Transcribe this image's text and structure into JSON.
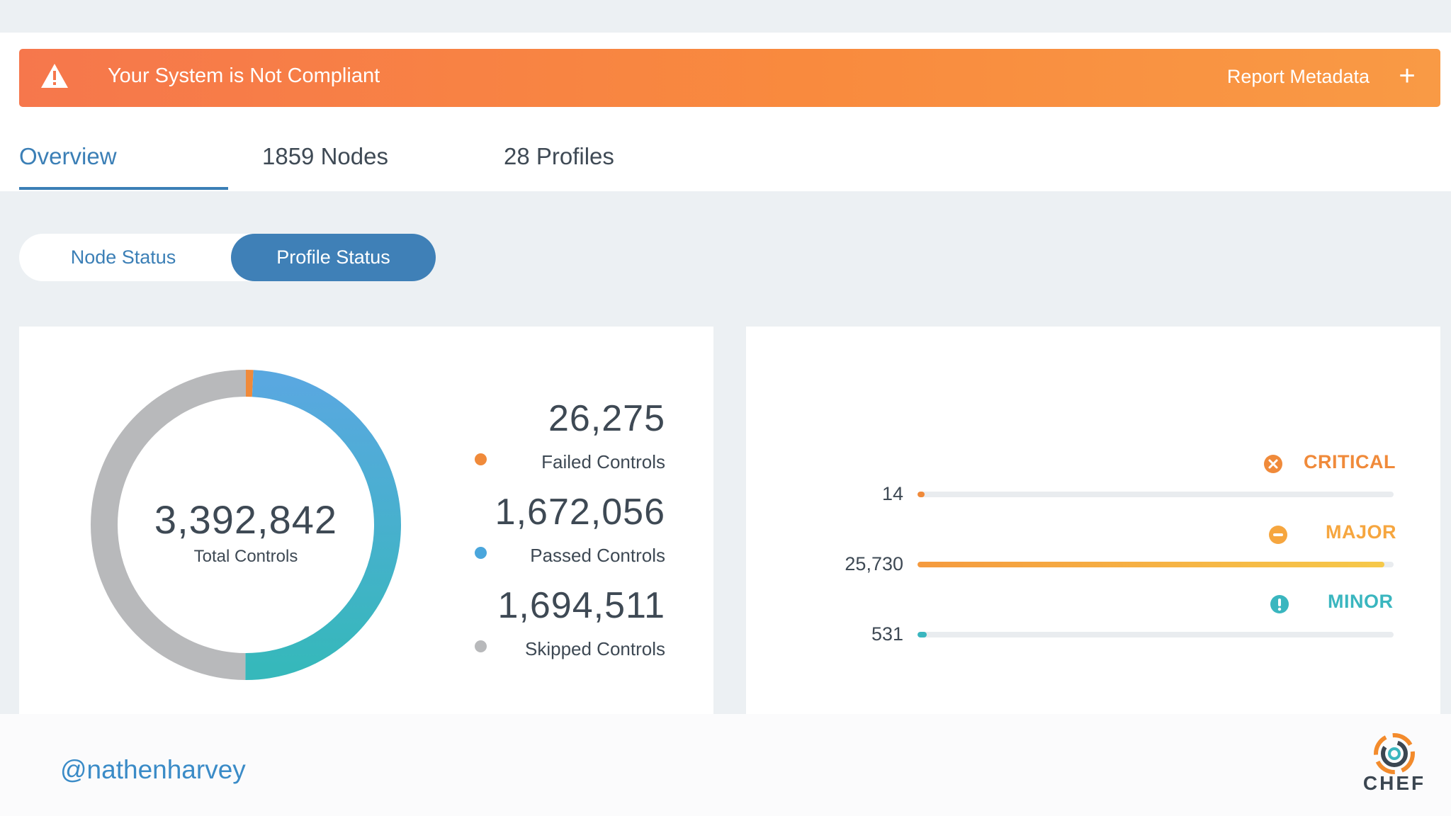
{
  "banner": {
    "title": "Your System is Not Compliant",
    "metadata_label": "Report Metadata",
    "warning_icon": "warning-triangle-icon",
    "expand_icon": "plus-icon",
    "color": "#f8823f"
  },
  "tabs": [
    {
      "label": "Overview",
      "active": true
    },
    {
      "label": "1859 Nodes",
      "active": false
    },
    {
      "label": "28 Profiles",
      "active": false
    }
  ],
  "status_toggle": {
    "node_label": "Node Status",
    "profile_label": "Profile Status",
    "selected": "Profile Status"
  },
  "controls": {
    "total": "3,392,842",
    "total_label": "Total Controls",
    "failed": {
      "value": "26,275",
      "label": "Failed Controls",
      "color": "#f08a3a",
      "count": 26275
    },
    "passed": {
      "value": "1,672,056",
      "label": "Passed Controls",
      "color": "#4aa6dc",
      "count": 1672056
    },
    "skipped": {
      "value": "1,694,511",
      "label": "Skipped Controls",
      "color": "#b8b9bb",
      "count": 1694511
    }
  },
  "severity": {
    "critical": {
      "label": "CRITICAL",
      "value": "14",
      "count": 14,
      "fraction": 0.0,
      "color": "#f08a3a",
      "icon": "x-circle-icon"
    },
    "major": {
      "label": "MAJOR",
      "value": "25,730",
      "count": 25730,
      "fraction": 0.98,
      "color": "#f6b53f",
      "icon": "minus-circle-icon"
    },
    "minor": {
      "label": "MINOR",
      "value": "531",
      "count": 531,
      "fraction": 0.02,
      "color": "#3ab6bf",
      "icon": "exclamation-circle-icon"
    }
  },
  "footer": {
    "handle": "@nathenharvey",
    "logo_text": "CHEF"
  }
}
